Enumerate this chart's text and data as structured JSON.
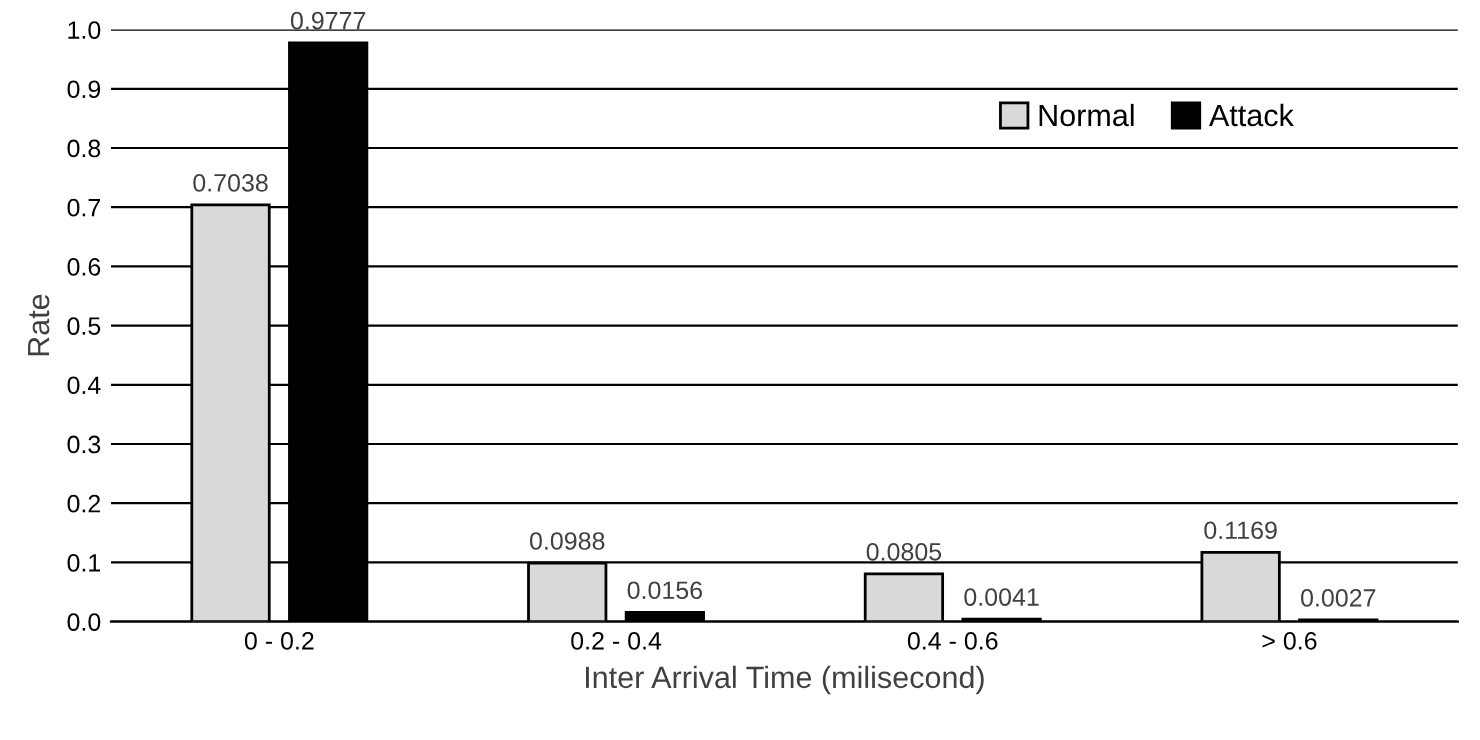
{
  "chart_data": {
    "type": "bar",
    "xlabel": "Inter Arrival Time (milisecond)",
    "ylabel": "Rate",
    "categories": [
      "0 - 0.2",
      "0.2 - 0.4",
      "0.4 - 0.6",
      "> 0.6"
    ],
    "series": [
      {
        "name": "Normal",
        "color": "#d9d9d9",
        "values": [
          0.7038,
          0.0988,
          0.0805,
          0.1169
        ]
      },
      {
        "name": "Attack",
        "color": "#000000",
        "values": [
          0.9777,
          0.0156,
          0.0041,
          0.0027
        ]
      }
    ],
    "ylim": [
      0,
      1.0
    ],
    "yticks": [
      {
        "value": 0,
        "label": "0.0"
      },
      0.1,
      0.2,
      0.3,
      0.4,
      0.5,
      0.6,
      0.7,
      0.8,
      0.9,
      {
        "value": 1.0,
        "label": "1.0"
      }
    ],
    "grid": "y",
    "legend": "top right",
    "data_labels": true
  }
}
